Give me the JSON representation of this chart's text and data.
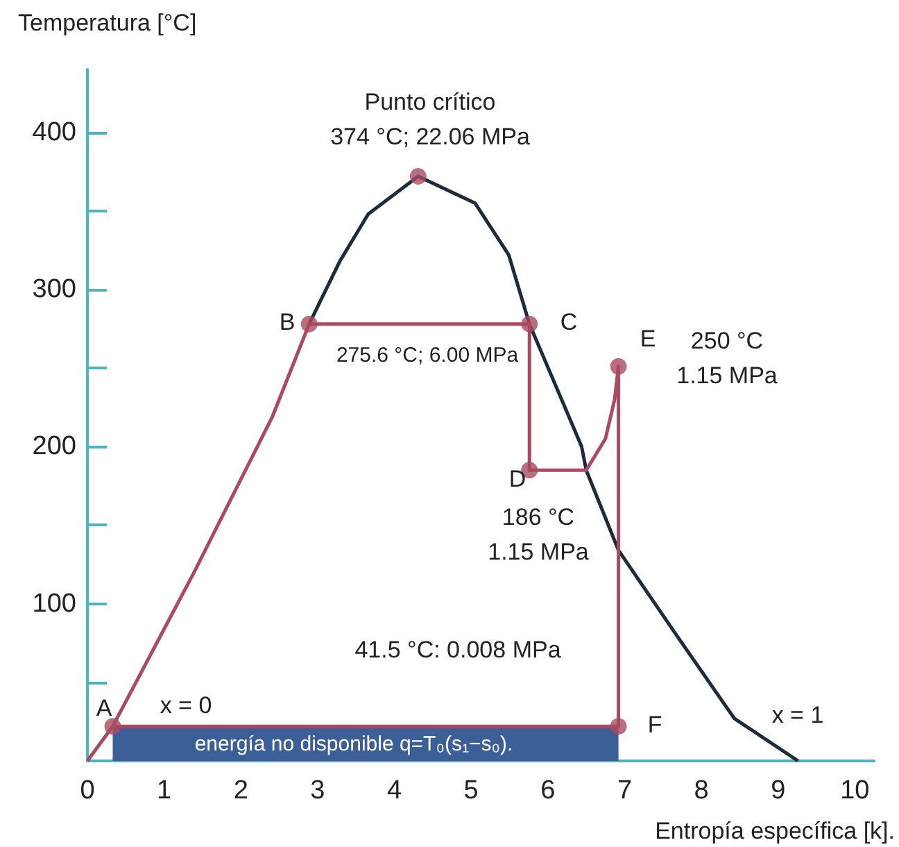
{
  "chart_data": {
    "type": "line",
    "xlabel": "Entropía específica [k].",
    "ylabel": "Temperatura [°C]",
    "xlim": [
      0,
      10.25
    ],
    "xticks": [
      0,
      1,
      2,
      3,
      4,
      5,
      6,
      7,
      8,
      9,
      10
    ],
    "ylim": [
      0,
      440
    ],
    "yticks": [
      {
        "value": 50,
        "label": null
      },
      100,
      {
        "value": 150,
        "label": null
      },
      200,
      {
        "value": 250,
        "label": null
      },
      300,
      {
        "value": 350,
        "label": null
      },
      400
    ],
    "grid": false,
    "series": [
      {
        "type": "area",
        "color": "#3d5f98",
        "x": [
          0.33,
          6.92
        ],
        "values": [
          22,
          22
        ]
      },
      {
        "color": "#1e2b38",
        "marker": "none",
        "x": [
          2.89,
          3.29,
          3.66,
          4.31,
          5.05,
          5.49,
          5.76,
          6.44,
          6.5,
          6.92,
          7.69,
          8.43,
          9.26
        ],
        "values": [
          278,
          318,
          348,
          372,
          355,
          322,
          278,
          200,
          185,
          134,
          79,
          27,
          0
        ]
      },
      {
        "color": "#a94a62",
        "marker": "none",
        "x": [
          0,
          0.33,
          1.39,
          2.41,
          2.89,
          5.76,
          5.76,
          6.5,
          6.75,
          6.87,
          6.92,
          6.92,
          0.33
        ],
        "values": [
          0,
          22,
          120,
          219,
          278,
          278,
          185,
          185,
          205,
          230,
          251,
          22,
          22
        ]
      },
      {
        "type": "scatter",
        "color": "#a94a62",
        "marker": "circle",
        "x": [
          0.33,
          2.89,
          5.76,
          5.76,
          6.92,
          6.92,
          4.31
        ],
        "values": [
          22,
          278,
          278,
          185,
          251,
          22,
          372
        ]
      }
    ],
    "annotations": [
      "Punto crítico\n374 °C; 22.06 MPa",
      "A",
      "B",
      "C",
      "D",
      "E",
      "F",
      "275.6 °C; 6.00 MPa",
      "250 °C\n1.15 MPa",
      "186 °C\n1.15 MPa",
      "41.5 °C: 0.008 MPa",
      "x = 0",
      "x = 1",
      "energía no disponible q=T₀(s₁−s₀)."
    ]
  }
}
